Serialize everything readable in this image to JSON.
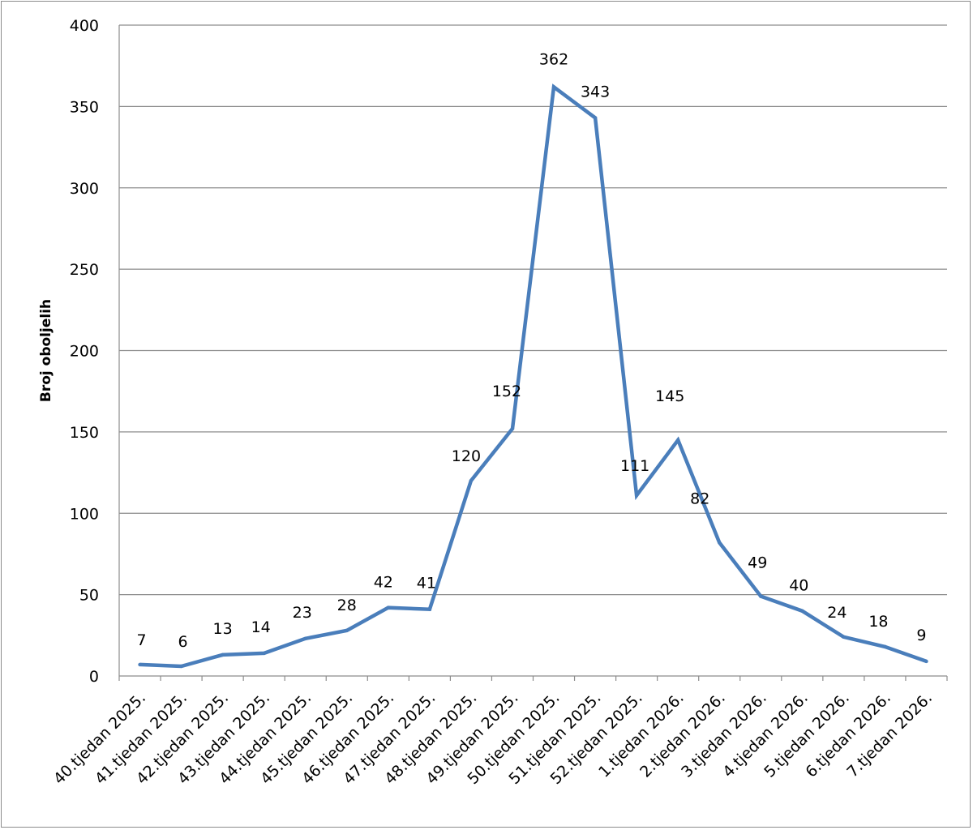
{
  "chart_data": {
    "type": "line",
    "title": "",
    "xlabel": "",
    "ylabel": "Broj oboljelih",
    "ylim": [
      0,
      400
    ],
    "yticks": [
      0,
      50,
      100,
      150,
      200,
      250,
      300,
      350,
      400
    ],
    "grid": true,
    "legend": "none",
    "categories": [
      "40.tjedan 2025.",
      "41.tjedan 2025.",
      "42.tjedan 2025.",
      "43.tjedan 2025.",
      "44.tjedan 2025.",
      "45.tjedan 2025.",
      "46.tjedan 2025.",
      "47.tjedan 2025.",
      "48.tjedan 2025.",
      "49.tjedan 2025.",
      "50.tjedan 2025.",
      "51.tjedan 2025.",
      "52.tjedan 2025.",
      "1.tjedan 2026.",
      "2.tjedan 2026.",
      "3.tjedan 2026.",
      "4.tjedan 2026.",
      "5.tjedan 2026.",
      "6.tjedan 2026.",
      "7.tjedan 2026."
    ],
    "series": [
      {
        "values": [
          7,
          6,
          13,
          14,
          23,
          28,
          42,
          41,
          120,
          152,
          362,
          343,
          111,
          145,
          82,
          49,
          40,
          24,
          18,
          9
        ],
        "color": "#4a7ebb"
      }
    ]
  }
}
